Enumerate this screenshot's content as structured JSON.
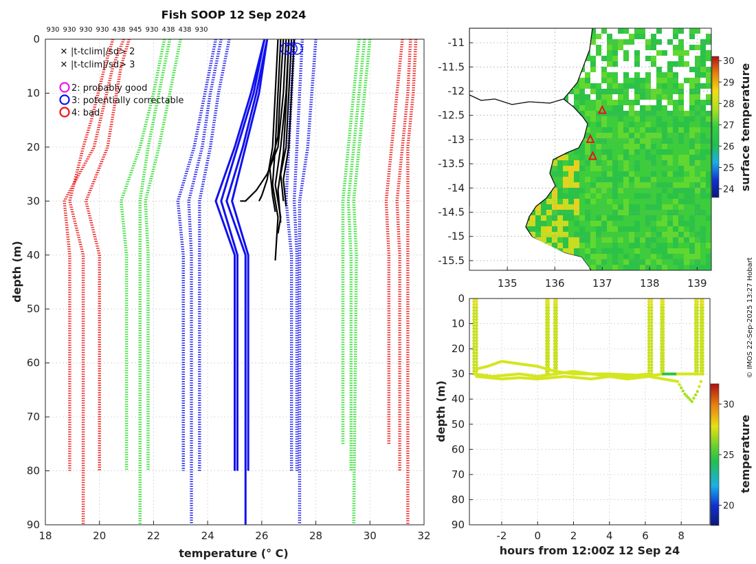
{
  "chart_data": [
    {
      "type": "line",
      "id": "profile",
      "title": "Fish SOOP 12 Sep 2024",
      "xlabel": "temperature (° C)",
      "ylabel": "depth (m)",
      "xlim": [
        18,
        32
      ],
      "ylim": [
        90,
        0
      ],
      "xticks": [
        18,
        20,
        22,
        24,
        26,
        28,
        30,
        32
      ],
      "yticks": [
        0,
        10,
        20,
        30,
        40,
        50,
        60,
        70,
        80,
        90
      ],
      "platform_codes": [
        "930",
        "930",
        "930",
        "930",
        "438",
        "945",
        "930",
        "438",
        "438",
        "930"
      ],
      "legend_marks": [
        {
          "symbol": "x",
          "text": "|t-tclim|/sd> 2",
          "color": "#22dd22"
        },
        {
          "symbol": "x",
          "text": "|t-tclim|/sd> 3",
          "color": "#ee1111"
        }
      ],
      "legend_flags": [
        {
          "symbol": "o",
          "text": "2: probably good",
          "color": "#ee11ee"
        },
        {
          "symbol": "o",
          "text": "3: potentially correctable",
          "color": "#1111ee"
        },
        {
          "symbol": "o",
          "text": "4: bad",
          "color": "#ee1111"
        }
      ],
      "climatology": [
        {
          "name": "mean-3sd-a",
          "color": "#ee1111",
          "points": [
            [
              20.5,
              0
            ],
            [
              20.2,
              5
            ],
            [
              19.7,
              15
            ],
            [
              19.4,
              20
            ],
            [
              18.9,
              30
            ],
            [
              19.4,
              40
            ],
            [
              19.4,
              80
            ],
            [
              19.4,
              90
            ]
          ]
        },
        {
          "name": "mean-3sd-b",
          "color": "#ee1111",
          "points": [
            [
              20.9,
              0
            ],
            [
              20.5,
              5
            ],
            [
              19.8,
              20
            ],
            [
              18.7,
              30
            ],
            [
              18.9,
              40
            ],
            [
              18.9,
              80
            ]
          ]
        },
        {
          "name": "mean-3sd-c",
          "color": "#ee1111",
          "points": [
            [
              21.1,
              0
            ],
            [
              20.8,
              5
            ],
            [
              20.3,
              20
            ],
            [
              19.5,
              30
            ],
            [
              20.0,
              40
            ],
            [
              20.0,
              80
            ]
          ]
        },
        {
          "name": "mean-2sd-a",
          "color": "#22dd22",
          "points": [
            [
              22.4,
              0
            ],
            [
              22.0,
              10
            ],
            [
              21.5,
              20
            ],
            [
              20.8,
              30
            ],
            [
              21.0,
              40
            ],
            [
              21.0,
              80
            ]
          ]
        },
        {
          "name": "mean-2sd-b",
          "color": "#22dd22",
          "points": [
            [
              22.6,
              0
            ],
            [
              22.2,
              10
            ],
            [
              21.8,
              20
            ],
            [
              21.5,
              30
            ],
            [
              21.5,
              40
            ],
            [
              21.5,
              90
            ]
          ]
        },
        {
          "name": "mean-2sd-c",
          "color": "#22dd22",
          "points": [
            [
              23.0,
              0
            ],
            [
              22.6,
              10
            ],
            [
              22.2,
              20
            ],
            [
              21.7,
              30
            ],
            [
              21.8,
              40
            ],
            [
              21.8,
              80
            ]
          ]
        },
        {
          "name": "mean-a",
          "color": "#1111ee",
          "points": [
            [
              24.3,
              0
            ],
            [
              23.9,
              10
            ],
            [
              23.5,
              20
            ],
            [
              22.9,
              30
            ],
            [
              23.1,
              40
            ],
            [
              23.1,
              80
            ]
          ]
        },
        {
          "name": "mean-b",
          "color": "#1111ee",
          "points": [
            [
              24.5,
              0
            ],
            [
              24.1,
              10
            ],
            [
              23.8,
              20
            ],
            [
              23.3,
              30
            ],
            [
              23.4,
              40
            ],
            [
              23.4,
              90
            ]
          ]
        },
        {
          "name": "mean-c",
          "color": "#1111ee",
          "points": [
            [
              24.8,
              0
            ],
            [
              24.4,
              10
            ],
            [
              24.1,
              20
            ],
            [
              23.7,
              30
            ],
            [
              23.7,
              40
            ],
            [
              23.7,
              80
            ]
          ]
        },
        {
          "name": "mean-d",
          "color": "#1111ee",
          "points": [
            [
              27.2,
              0
            ],
            [
              27.0,
              20
            ],
            [
              26.9,
              30
            ],
            [
              27.1,
              40
            ],
            [
              27.1,
              80
            ]
          ]
        },
        {
          "name": "mean-e",
          "color": "#1111ee",
          "points": [
            [
              27.5,
              0
            ],
            [
              27.3,
              20
            ],
            [
              27.2,
              30
            ],
            [
              27.3,
              40
            ],
            [
              27.3,
              80
            ]
          ]
        },
        {
          "name": "mean-f",
          "color": "#1111ee",
          "points": [
            [
              28.0,
              0
            ],
            [
              27.7,
              20
            ],
            [
              27.4,
              30
            ],
            [
              27.4,
              40
            ],
            [
              27.4,
              90
            ]
          ]
        },
        {
          "name": "mean+2sd-a",
          "color": "#22dd22",
          "points": [
            [
              29.6,
              0
            ],
            [
              29.4,
              10
            ],
            [
              29.0,
              30
            ],
            [
              29.0,
              40
            ],
            [
              29.0,
              75
            ]
          ]
        },
        {
          "name": "mean+2sd-b",
          "color": "#22dd22",
          "points": [
            [
              29.8,
              0
            ],
            [
              29.6,
              10
            ],
            [
              29.2,
              30
            ],
            [
              29.3,
              40
            ],
            [
              29.3,
              80
            ]
          ]
        },
        {
          "name": "mean+2sd-c",
          "color": "#22dd22",
          "points": [
            [
              30.0,
              0
            ],
            [
              29.8,
              10
            ],
            [
              29.4,
              30
            ],
            [
              29.5,
              40
            ],
            [
              29.4,
              90
            ]
          ]
        },
        {
          "name": "mean+3sd-a",
          "color": "#ee1111",
          "points": [
            [
              31.2,
              0
            ],
            [
              31.0,
              10
            ],
            [
              30.6,
              30
            ],
            [
              30.7,
              40
            ],
            [
              30.7,
              75
            ]
          ]
        },
        {
          "name": "mean+3sd-b",
          "color": "#ee1111",
          "points": [
            [
              31.5,
              0
            ],
            [
              31.4,
              10
            ],
            [
              31.0,
              30
            ],
            [
              31.1,
              40
            ],
            [
              31.1,
              80
            ]
          ]
        },
        {
          "name": "mean+3sd-c",
          "color": "#ee1111",
          "points": [
            [
              31.7,
              0
            ],
            [
              31.6,
              10
            ],
            [
              31.4,
              20
            ],
            [
              31.4,
              40
            ],
            [
              31.4,
              90
            ]
          ]
        }
      ],
      "mean_profiles": [
        {
          "color": "#1111ee",
          "points": [
            [
              26.1,
              0
            ],
            [
              25.6,
              10
            ],
            [
              25.0,
              20
            ],
            [
              24.3,
              30
            ],
            [
              25.0,
              40
            ],
            [
              25.0,
              80
            ]
          ]
        },
        {
          "color": "#1111ee",
          "points": [
            [
              26.1,
              0
            ],
            [
              25.7,
              10
            ],
            [
              25.1,
              20
            ],
            [
              24.5,
              30
            ],
            [
              25.1,
              40
            ],
            [
              25.1,
              80
            ]
          ]
        },
        {
          "color": "#1111ee",
          "points": [
            [
              26.2,
              0
            ],
            [
              25.8,
              10
            ],
            [
              25.3,
              20
            ],
            [
              24.7,
              30
            ],
            [
              25.4,
              40
            ],
            [
              25.4,
              90
            ]
          ]
        },
        {
          "color": "#1111ee",
          "points": [
            [
              26.2,
              0
            ],
            [
              25.9,
              10
            ],
            [
              25.4,
              20
            ],
            [
              24.9,
              30
            ],
            [
              25.5,
              40
            ],
            [
              25.5,
              80
            ]
          ]
        }
      ],
      "observed_profiles": [
        {
          "color": "#000000",
          "points": [
            [
              26.7,
              0
            ],
            [
              26.6,
              10
            ],
            [
              26.5,
              20
            ],
            [
              26.4,
              27
            ],
            [
              26.6,
              33
            ],
            [
              26.5,
              41
            ]
          ]
        },
        {
          "color": "#000000",
          "points": [
            [
              26.9,
              0
            ],
            [
              26.8,
              10
            ],
            [
              26.6,
              20
            ],
            [
              26.2,
              25
            ],
            [
              25.8,
              28
            ],
            [
              25.4,
              30
            ],
            [
              25.2,
              30
            ]
          ]
        },
        {
          "color": "#000000",
          "points": [
            [
              27.0,
              0
            ],
            [
              26.9,
              10
            ],
            [
              26.7,
              20
            ],
            [
              26.5,
              27
            ],
            [
              26.7,
              33
            ],
            [
              26.6,
              36
            ]
          ]
        },
        {
          "color": "#000000",
          "points": [
            [
              27.1,
              0
            ],
            [
              27.0,
              10
            ],
            [
              26.9,
              20
            ],
            [
              26.7,
              25
            ],
            [
              26.8,
              30
            ]
          ]
        },
        {
          "color": "#000000",
          "points": [
            [
              27.2,
              0
            ],
            [
              27.1,
              10
            ],
            [
              27.0,
              20
            ],
            [
              26.8,
              26
            ],
            [
              26.9,
              31
            ]
          ]
        },
        {
          "color": "#000000",
          "points": [
            [
              26.6,
              0
            ],
            [
              26.5,
              10
            ],
            [
              26.4,
              20
            ],
            [
              26.2,
              26
            ],
            [
              26.0,
              29
            ],
            [
              25.9,
              30
            ]
          ]
        },
        {
          "color": "#000000",
          "points": [
            [
              27.0,
              0
            ],
            [
              26.9,
              12
            ],
            [
              26.8,
              21
            ],
            [
              26.6,
              28
            ],
            [
              26.7,
              34
            ]
          ]
        },
        {
          "color": "#000000",
          "points": [
            [
              26.8,
              0
            ],
            [
              26.7,
              8
            ],
            [
              26.6,
              18
            ],
            [
              26.3,
              24
            ],
            [
              26.4,
              29
            ],
            [
              26.5,
              32
            ]
          ]
        }
      ],
      "flag_circles": [
        {
          "x": 26.9,
          "y": 1,
          "color": "#1111ee"
        },
        {
          "x": 27.1,
          "y": 1,
          "color": "#1111ee"
        },
        {
          "x": 27.3,
          "y": 1,
          "color": "#1111ee"
        }
      ]
    },
    {
      "type": "heatmap",
      "id": "sst-map",
      "xlim": [
        134.2,
        139.3
      ],
      "ylim": [
        -15.7,
        -10.7
      ],
      "xticks": [
        135,
        136,
        137,
        138,
        139
      ],
      "yticks": [
        -11,
        -11.5,
        -12,
        -12.5,
        -13,
        -13.5,
        -14,
        -14.5,
        -15,
        -15.5
      ],
      "colorbar": {
        "label": "surface temperature",
        "min": 23.6,
        "max": 30.2,
        "ticks": [
          24,
          25,
          26,
          27,
          28,
          29,
          30
        ]
      },
      "sites": [
        {
          "lon": 137.0,
          "lat": -12.4
        },
        {
          "lon": 136.75,
          "lat": -13.0
        },
        {
          "lon": 136.8,
          "lat": -13.35
        }
      ]
    },
    {
      "type": "scatter",
      "id": "depth-time",
      "xlabel": "hours from 12:00Z 12 Sep 24",
      "ylabel": "depth (m)",
      "xlim": [
        -3.8,
        9.6
      ],
      "ylim": [
        90,
        0
      ],
      "xticks": [
        -2,
        0,
        2,
        4,
        6,
        8
      ],
      "yticks": [
        0,
        10,
        20,
        30,
        40,
        50,
        60,
        70,
        80,
        90
      ],
      "colorbar": {
        "label": "temperature",
        "min": 18,
        "max": 32,
        "ticks": [
          20,
          25,
          30
        ]
      },
      "dives": [
        {
          "x": [
            -3.55,
            -3.4
          ],
          "bottom": 30
        },
        {
          "x": [
            0.5,
            0.6
          ],
          "bottom": 30
        },
        {
          "x": [
            0.95,
            1.05
          ],
          "bottom": 31
        },
        {
          "x": [
            6.2,
            6.35
          ],
          "bottom": 30
        },
        {
          "x": [
            6.9,
            7.0
          ],
          "bottom": 30
        },
        {
          "x": [
            8.8,
            8.9
          ],
          "bottom": 30
        },
        {
          "x": [
            9.1,
            9.2
          ],
          "bottom": 30
        }
      ]
    }
  ],
  "footer": {
    "credit": "© IMOS 22-Sep-2025 13:27 Hobart"
  }
}
